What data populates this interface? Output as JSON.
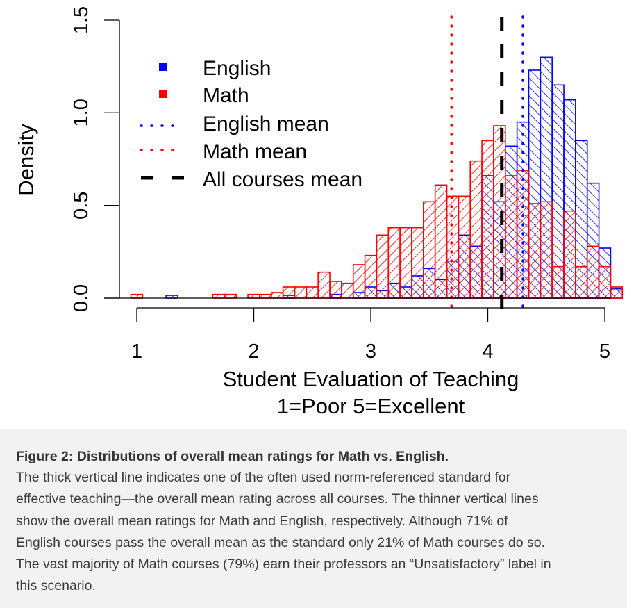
{
  "chart_data": {
    "type": "bar",
    "subtype": "overlaid-histogram",
    "xlabel_line1": "Student Evaluation of Teaching",
    "xlabel_line2": "1=Poor 5=Excellent",
    "ylabel": "Density",
    "xlim": [
      0.9,
      5.05
    ],
    "ylim": [
      0,
      1.5
    ],
    "xticks": [
      "1",
      "2",
      "3",
      "4",
      "5"
    ],
    "yticks": [
      "0.0",
      "0.5",
      "1.0",
      "1.5"
    ],
    "bin_width": 0.1,
    "series": [
      {
        "name": "English",
        "color": "#0000ff",
        "bins": [
          {
            "x": 1.3,
            "y": 0.015
          },
          {
            "x": 2.3,
            "y": 0.015
          },
          {
            "x": 2.7,
            "y": 0.02
          },
          {
            "x": 2.9,
            "y": 0.03
          },
          {
            "x": 3.0,
            "y": 0.06
          },
          {
            "x": 3.1,
            "y": 0.04
          },
          {
            "x": 3.2,
            "y": 0.08
          },
          {
            "x": 3.3,
            "y": 0.06
          },
          {
            "x": 3.4,
            "y": 0.12
          },
          {
            "x": 3.5,
            "y": 0.16
          },
          {
            "x": 3.6,
            "y": 0.1
          },
          {
            "x": 3.7,
            "y": 0.2
          },
          {
            "x": 3.8,
            "y": 0.34
          },
          {
            "x": 3.9,
            "y": 0.28
          },
          {
            "x": 4.0,
            "y": 0.66
          },
          {
            "x": 4.1,
            "y": 0.52
          },
          {
            "x": 4.2,
            "y": 0.82
          },
          {
            "x": 4.3,
            "y": 0.95
          },
          {
            "x": 4.4,
            "y": 1.23
          },
          {
            "x": 4.5,
            "y": 1.3
          },
          {
            "x": 4.6,
            "y": 1.15
          },
          {
            "x": 4.7,
            "y": 1.07
          },
          {
            "x": 4.8,
            "y": 0.85
          },
          {
            "x": 4.9,
            "y": 0.62
          },
          {
            "x": 5.0,
            "y": 0.27
          },
          {
            "x": 5.1,
            "y": 0.05
          }
        ]
      },
      {
        "name": "Math",
        "color": "#ff0000",
        "bins": [
          {
            "x": 1.0,
            "y": 0.02
          },
          {
            "x": 1.7,
            "y": 0.02
          },
          {
            "x": 1.8,
            "y": 0.02
          },
          {
            "x": 2.0,
            "y": 0.02
          },
          {
            "x": 2.1,
            "y": 0.02
          },
          {
            "x": 2.2,
            "y": 0.03
          },
          {
            "x": 2.3,
            "y": 0.06
          },
          {
            "x": 2.4,
            "y": 0.06
          },
          {
            "x": 2.5,
            "y": 0.06
          },
          {
            "x": 2.6,
            "y": 0.14
          },
          {
            "x": 2.7,
            "y": 0.09
          },
          {
            "x": 2.8,
            "y": 0.08
          },
          {
            "x": 2.9,
            "y": 0.18
          },
          {
            "x": 3.0,
            "y": 0.23
          },
          {
            "x": 3.1,
            "y": 0.34
          },
          {
            "x": 3.2,
            "y": 0.38
          },
          {
            "x": 3.3,
            "y": 0.38
          },
          {
            "x": 3.4,
            "y": 0.38
          },
          {
            "x": 3.5,
            "y": 0.52
          },
          {
            "x": 3.6,
            "y": 0.61
          },
          {
            "x": 3.7,
            "y": 0.55
          },
          {
            "x": 3.8,
            "y": 0.55
          },
          {
            "x": 3.9,
            "y": 0.74
          },
          {
            "x": 4.0,
            "y": 0.85
          },
          {
            "x": 4.1,
            "y": 0.93
          },
          {
            "x": 4.2,
            "y": 0.66
          },
          {
            "x": 4.3,
            "y": 0.69
          },
          {
            "x": 4.4,
            "y": 0.51
          },
          {
            "x": 4.5,
            "y": 0.52
          },
          {
            "x": 4.6,
            "y": 0.17
          },
          {
            "x": 4.7,
            "y": 0.47
          },
          {
            "x": 4.8,
            "y": 0.17
          },
          {
            "x": 4.9,
            "y": 0.28
          },
          {
            "x": 5.0,
            "y": 0.17
          },
          {
            "x": 5.1,
            "y": 0.06
          }
        ]
      }
    ],
    "reference_lines": [
      {
        "name": "English mean",
        "x": 4.3,
        "color": "#0000ff",
        "style": "dotted"
      },
      {
        "name": "Math mean",
        "x": 3.69,
        "color": "#ff0000",
        "style": "dotted"
      },
      {
        "name": "All courses mean",
        "x": 4.12,
        "color": "#000000",
        "style": "dashed"
      }
    ],
    "legend": {
      "placement": "top-left",
      "entries": [
        {
          "label": "English",
          "kind": "square",
          "color": "#0000ff"
        },
        {
          "label": "Math",
          "kind": "square",
          "color": "#ff0000"
        },
        {
          "label": "English mean",
          "kind": "dotted",
          "color": "#0000ff"
        },
        {
          "label": "Math mean",
          "kind": "dotted",
          "color": "#ff0000"
        },
        {
          "label": "All courses mean",
          "kind": "dashed",
          "color": "#000000"
        }
      ]
    },
    "grid": false
  },
  "caption": {
    "title": "Figure 2: Distributions of overall mean ratings for Math vs. English.",
    "lines": [
      "The thick vertical line indicates one of the often used norm-referenced standard for",
      "effective teaching—the overall mean rating across all courses. The thinner vertical lines",
      "show the overall mean ratings for Math and English, respectively. Although 71% of",
      "English courses pass the overall mean as the standard only 21% of Math courses do so.",
      "The vast majority of Math courses (79%) earn their professors an “Unsatisfactory” label in",
      "this scenario."
    ]
  }
}
